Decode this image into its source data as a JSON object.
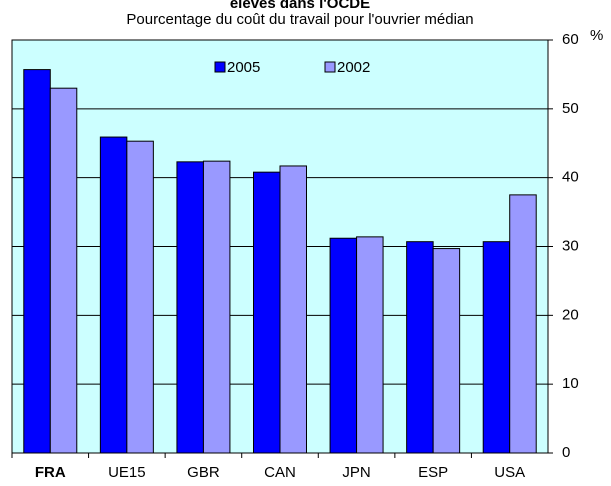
{
  "chart_data": {
    "type": "bar",
    "title": "élevés dans l'OCDE",
    "subtitle": "Pourcentage du coût du travail pour l'ouvrier médian",
    "y_axis_label": "%",
    "categories": [
      "FRA",
      "UE15",
      "GBR",
      "CAN",
      "JPN",
      "ESP",
      "USA"
    ],
    "series": [
      {
        "name": "2005",
        "color": "#0000ff",
        "values": [
          55.7,
          45.9,
          42.3,
          40.8,
          31.2,
          30.7,
          30.7
        ]
      },
      {
        "name": "2002",
        "color": "#9999ff",
        "values": [
          53.0,
          45.3,
          42.4,
          41.7,
          31.4,
          29.7,
          37.5
        ]
      }
    ],
    "ylim": [
      0,
      60
    ],
    "yticks": [
      0,
      10,
      20,
      30,
      40,
      50,
      60
    ],
    "grid": true,
    "y_axis_side": "right",
    "legend": "top",
    "highlight_category": "FRA"
  }
}
